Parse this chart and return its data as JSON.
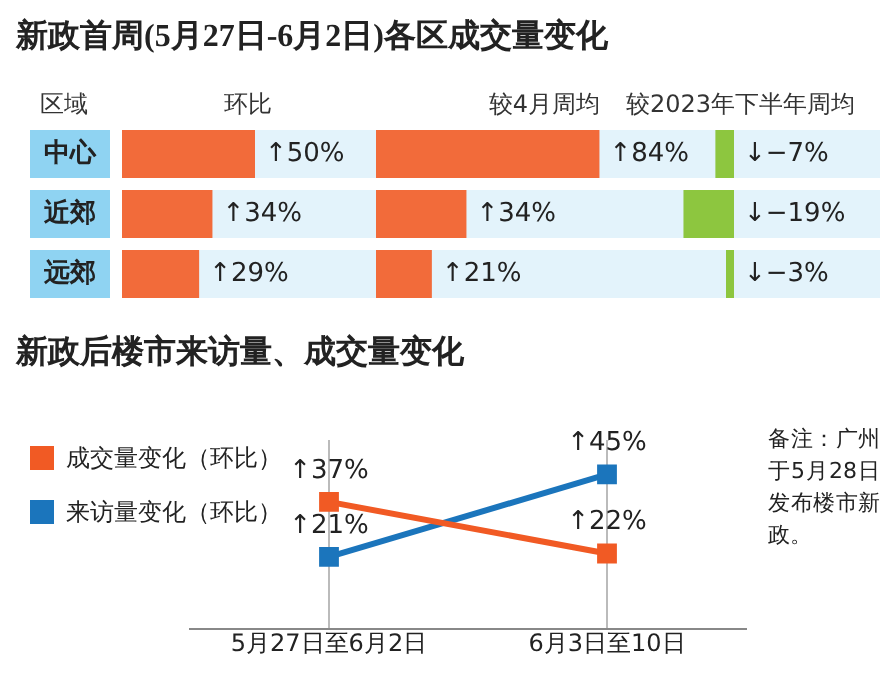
{
  "chart_data": [
    {
      "type": "bar",
      "orientation": "horizontal",
      "title": "新政首周(5月27日-6月2日)各区成交量变化",
      "ylabel": "区域",
      "xlabel": "环比",
      "categories": [
        "中心",
        "近郊",
        "远郊"
      ],
      "values": [
        50,
        34,
        29
      ],
      "value_labels": [
        "↑50%",
        "↑34%",
        "↑29%"
      ],
      "color": "#f26b3a",
      "tick_labels": "y",
      "grid": false,
      "legend": false
    },
    {
      "type": "bar",
      "orientation": "horizontal",
      "xlabel": "较4月周均",
      "categories": [
        null,
        null,
        null
      ],
      "values": [
        84,
        34,
        21
      ],
      "value_labels": [
        "↑84%",
        "↑34%",
        "↑21%"
      ],
      "color": "#f26b3a",
      "tick_labels": false,
      "grid": false,
      "legend": false
    },
    {
      "type": "bar",
      "orientation": "horizontal",
      "xlabel": "较2023年下半年周均",
      "categories": [
        null,
        null,
        null
      ],
      "values": [
        -7,
        -19,
        -3
      ],
      "value_labels": [
        "↓−7%",
        "↓−19%",
        "↓−3%"
      ],
      "color": "#8dc63f",
      "tick_labels": false,
      "grid": false,
      "legend": false
    },
    {
      "type": "line",
      "title": "新政后楼市来访量、成交量变化",
      "categories": [
        "5月27日至6月2日",
        "6月3日至10日"
      ],
      "series": [
        {
          "name": "成交量变化（环比）",
          "color": "#f15a24",
          "values": [
            37,
            22
          ],
          "value_labels": [
            "↑37%",
            "↑22%"
          ]
        },
        {
          "name": "来访量变化（环比）",
          "color": "#1b75bc",
          "values": [
            21,
            45
          ],
          "value_labels": [
            "↑21%",
            "↑45%"
          ]
        }
      ],
      "ylim": [
        0,
        55
      ],
      "tick_labels": "x",
      "grid": "x",
      "legend": "left",
      "marker": "square",
      "line_style": "solid",
      "annotations": [
        "备注：广州于5月28日发布楼市新政。"
      ]
    }
  ]
}
